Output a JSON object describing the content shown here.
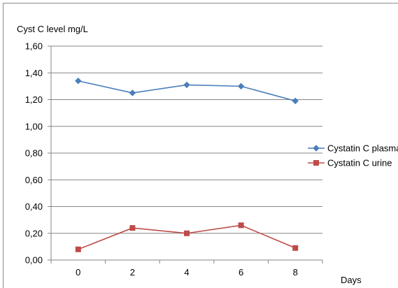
{
  "chart_data": {
    "type": "line",
    "ylabel": "Cyst C level mg/L",
    "xlabel": "Days",
    "categories": [
      "0",
      "2",
      "4",
      "6",
      "8"
    ],
    "ylim": [
      0,
      1.6
    ],
    "y_ticks": [
      "0,00",
      "0,20",
      "0,40",
      "0,60",
      "0,80",
      "1,00",
      "1,20",
      "1,40",
      "1,60"
    ],
    "grid": "horizontal",
    "legend_position": "right",
    "series": [
      {
        "name": "Cystatin C plasma",
        "values": [
          1.34,
          1.25,
          1.31,
          1.3,
          1.19
        ],
        "color": "#4a7ebb",
        "marker": "diamond"
      },
      {
        "name": "Cystatin C urine",
        "values": [
          0.08,
          0.24,
          0.2,
          0.26,
          0.09
        ],
        "color": "#be4b48",
        "marker": "square"
      }
    ]
  }
}
